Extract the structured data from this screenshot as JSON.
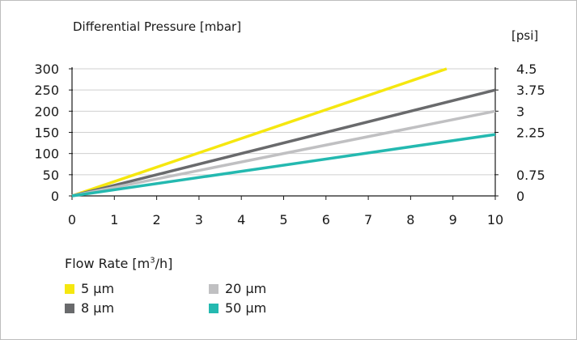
{
  "chart_data": {
    "type": "line",
    "title": "Differential Pressure [mbar]",
    "right_axis_label": "[psi]",
    "xlabel": "Flow Rate [m³/h]",
    "xlabel_prefix": "Flow Rate [m",
    "xlabel_sup": "3",
    "xlabel_suffix": "/h]",
    "xlim": [
      0,
      10
    ],
    "ylim": [
      0,
      300
    ],
    "x_ticks": [
      0,
      1,
      2,
      3,
      4,
      5,
      6,
      7,
      8,
      9,
      10
    ],
    "y_ticks": [
      0,
      50,
      100,
      150,
      200,
      250,
      300
    ],
    "y_gridlines": [
      50,
      100,
      150,
      200,
      250,
      300
    ],
    "right_ticks": [
      {
        "value": 0,
        "label": "0"
      },
      {
        "value": 50,
        "label": "0.75"
      },
      {
        "value": 150,
        "label": "2.25"
      },
      {
        "value": 200,
        "label": "3"
      },
      {
        "value": 250,
        "label": "3.75"
      },
      {
        "value": 300,
        "label": "4.5"
      }
    ],
    "grid": true,
    "legend_position": "bottom-left",
    "series": [
      {
        "name": "5 µm",
        "color": "#f5e70f",
        "x": [
          0,
          8.85
        ],
        "y": [
          0,
          300
        ]
      },
      {
        "name": "8 µm",
        "color": "#696a6c",
        "x": [
          0,
          10
        ],
        "y": [
          0,
          250
        ]
      },
      {
        "name": "20 µm",
        "color": "#c0c0c2",
        "x": [
          0,
          10
        ],
        "y": [
          0,
          200
        ]
      },
      {
        "name": "50 µm",
        "color": "#24b9b0",
        "x": [
          0,
          10
        ],
        "y": [
          0,
          145
        ]
      }
    ],
    "legend_order": [
      0,
      2,
      1,
      3
    ]
  }
}
